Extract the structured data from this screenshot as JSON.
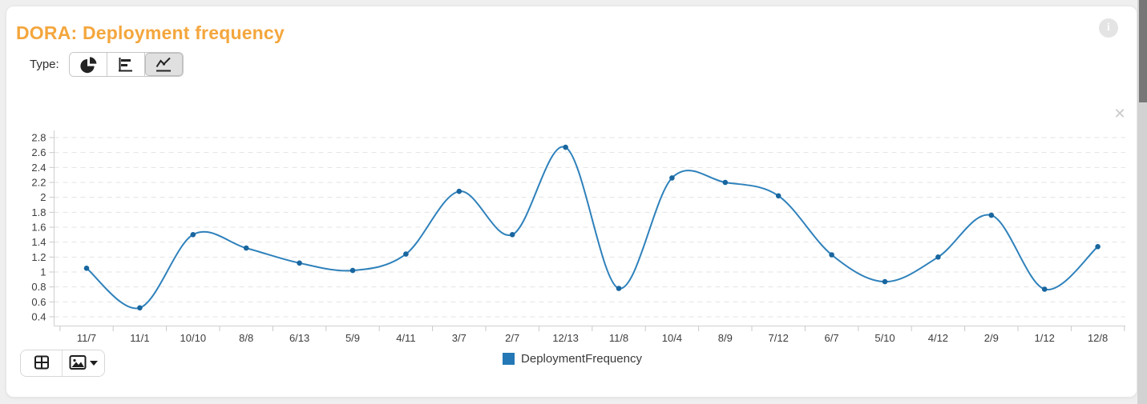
{
  "header": {
    "title": "DORA: Deployment frequency",
    "info_glyph": "i"
  },
  "type_selector": {
    "label": "Type:",
    "selected": "line",
    "options": [
      {
        "id": "pie",
        "icon": "pie-chart-icon"
      },
      {
        "id": "bar",
        "icon": "bar-chart-icon"
      },
      {
        "id": "line",
        "icon": "line-chart-icon"
      }
    ]
  },
  "chart": {
    "close_glyph": "✕"
  },
  "chart_data": {
    "type": "line",
    "categories": [
      "11/7",
      "11/1",
      "10/10",
      "8/8",
      "6/13",
      "5/9",
      "4/11",
      "3/7",
      "2/7",
      "12/13",
      "11/8",
      "10/4",
      "8/9",
      "7/12",
      "6/7",
      "5/10",
      "4/12",
      "2/9",
      "1/12",
      "12/8"
    ],
    "series": [
      {
        "name": "DeploymentFrequency",
        "color": "#2478b5",
        "line_color": "#2e81bb",
        "marker_color": "#19669f",
        "values": [
          1.05,
          0.52,
          1.5,
          1.32,
          1.12,
          1.02,
          1.24,
          2.08,
          1.5,
          2.67,
          0.78,
          2.26,
          2.2,
          2.02,
          1.23,
          0.87,
          1.2,
          1.76,
          0.77,
          1.34
        ]
      }
    ],
    "ylim": [
      0.4,
      2.8
    ],
    "ytick_labels": [
      "0.4",
      "0.6",
      "0.8",
      "1",
      "1.2",
      "1.4",
      "1.6",
      "1.8",
      "2",
      "2.2",
      "2.4",
      "2.6",
      "2.8"
    ],
    "grid": "horizontal-dashed",
    "legend_position": "bottom-center",
    "marker": "circle"
  },
  "toolbar": {
    "buttons": [
      {
        "id": "show-table",
        "icon": "table-icon"
      },
      {
        "id": "export-image",
        "icon": "image-icon"
      }
    ]
  }
}
